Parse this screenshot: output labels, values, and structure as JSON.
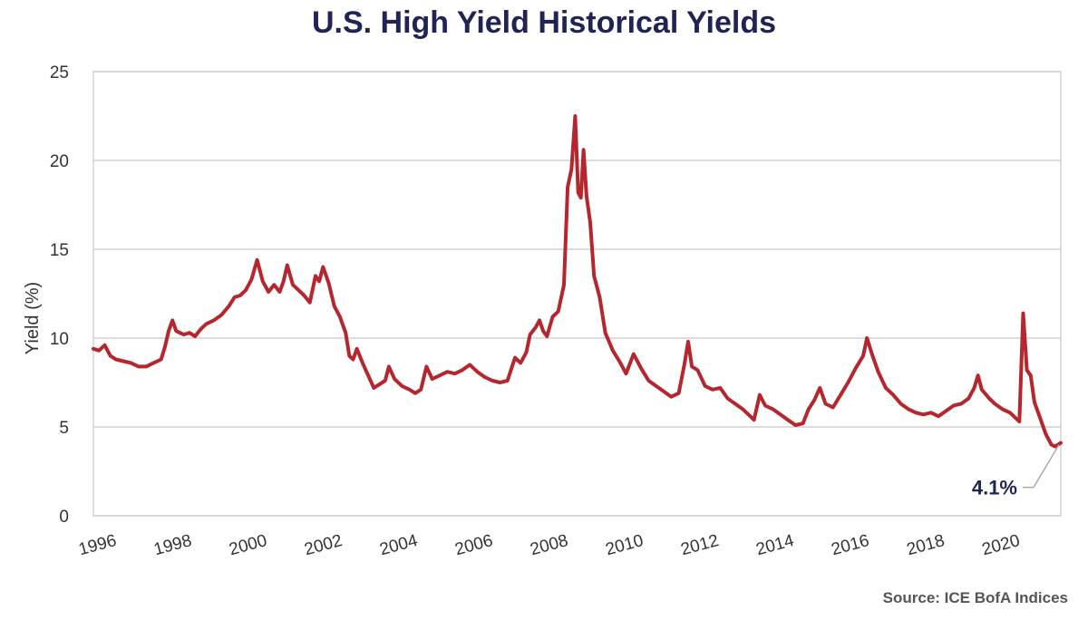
{
  "title": "U.S. High Yield Historical Yields",
  "source": "Source: ICE BofA Indices",
  "chart_data": {
    "type": "line",
    "ylabel": "Yield (%)",
    "xlabel": "",
    "xlim": [
      1996,
      2021.7
    ],
    "ylim": [
      0,
      25
    ],
    "yticks": [
      0,
      5,
      10,
      15,
      20,
      25
    ],
    "xticks": [
      1996,
      1998,
      2000,
      2002,
      2004,
      2006,
      2008,
      2010,
      2012,
      2014,
      2016,
      2018,
      2020
    ],
    "grid": "horizontal",
    "line_color": "#b5262e",
    "annotation": {
      "text": "4.1%",
      "x": 2021.7,
      "y": 4.1
    },
    "series": [
      {
        "points": [
          [
            1996.0,
            9.4
          ],
          [
            1996.15,
            9.3
          ],
          [
            1996.3,
            9.6
          ],
          [
            1996.45,
            9.0
          ],
          [
            1996.6,
            8.8
          ],
          [
            1996.8,
            8.7
          ],
          [
            1997.0,
            8.6
          ],
          [
            1997.2,
            8.4
          ],
          [
            1997.4,
            8.4
          ],
          [
            1997.6,
            8.6
          ],
          [
            1997.8,
            8.8
          ],
          [
            1997.9,
            9.5
          ],
          [
            1998.0,
            10.4
          ],
          [
            1998.1,
            11.0
          ],
          [
            1998.2,
            10.4
          ],
          [
            1998.4,
            10.2
          ],
          [
            1998.55,
            10.3
          ],
          [
            1998.7,
            10.1
          ],
          [
            1998.85,
            10.5
          ],
          [
            1999.0,
            10.8
          ],
          [
            1999.2,
            11.0
          ],
          [
            1999.4,
            11.3
          ],
          [
            1999.6,
            11.8
          ],
          [
            1999.75,
            12.3
          ],
          [
            1999.9,
            12.4
          ],
          [
            2000.05,
            12.7
          ],
          [
            2000.2,
            13.3
          ],
          [
            2000.35,
            14.4
          ],
          [
            2000.5,
            13.2
          ],
          [
            2000.65,
            12.6
          ],
          [
            2000.8,
            13.0
          ],
          [
            2000.95,
            12.6
          ],
          [
            2001.05,
            13.2
          ],
          [
            2001.15,
            14.1
          ],
          [
            2001.3,
            13.0
          ],
          [
            2001.45,
            12.7
          ],
          [
            2001.6,
            12.4
          ],
          [
            2001.75,
            12.0
          ],
          [
            2001.9,
            13.5
          ],
          [
            2002.0,
            13.2
          ],
          [
            2002.1,
            14.0
          ],
          [
            2002.25,
            13.1
          ],
          [
            2002.4,
            11.8
          ],
          [
            2002.55,
            11.2
          ],
          [
            2002.7,
            10.3
          ],
          [
            2002.8,
            9.0
          ],
          [
            2002.9,
            8.8
          ],
          [
            2003.0,
            9.4
          ],
          [
            2003.15,
            8.6
          ],
          [
            2003.3,
            7.9
          ],
          [
            2003.45,
            7.2
          ],
          [
            2003.6,
            7.4
          ],
          [
            2003.75,
            7.6
          ],
          [
            2003.85,
            8.4
          ],
          [
            2004.0,
            7.7
          ],
          [
            2004.2,
            7.3
          ],
          [
            2004.4,
            7.1
          ],
          [
            2004.55,
            6.9
          ],
          [
            2004.7,
            7.1
          ],
          [
            2004.85,
            8.4
          ],
          [
            2005.0,
            7.7
          ],
          [
            2005.2,
            7.9
          ],
          [
            2005.4,
            8.1
          ],
          [
            2005.6,
            8.0
          ],
          [
            2005.8,
            8.2
          ],
          [
            2006.0,
            8.5
          ],
          [
            2006.2,
            8.1
          ],
          [
            2006.4,
            7.8
          ],
          [
            2006.6,
            7.6
          ],
          [
            2006.8,
            7.5
          ],
          [
            2007.0,
            7.6
          ],
          [
            2007.2,
            8.9
          ],
          [
            2007.35,
            8.6
          ],
          [
            2007.5,
            9.2
          ],
          [
            2007.6,
            10.2
          ],
          [
            2007.75,
            10.6
          ],
          [
            2007.85,
            11.0
          ],
          [
            2007.95,
            10.4
          ],
          [
            2008.05,
            10.1
          ],
          [
            2008.2,
            11.2
          ],
          [
            2008.35,
            11.5
          ],
          [
            2008.5,
            13.0
          ],
          [
            2008.6,
            18.5
          ],
          [
            2008.7,
            19.5
          ],
          [
            2008.8,
            22.5
          ],
          [
            2008.88,
            18.2
          ],
          [
            2008.95,
            17.9
          ],
          [
            2009.02,
            20.6
          ],
          [
            2009.1,
            18.0
          ],
          [
            2009.2,
            16.5
          ],
          [
            2009.3,
            13.5
          ],
          [
            2009.45,
            12.3
          ],
          [
            2009.6,
            10.3
          ],
          [
            2009.8,
            9.3
          ],
          [
            2010.0,
            8.6
          ],
          [
            2010.15,
            8.0
          ],
          [
            2010.35,
            9.1
          ],
          [
            2010.55,
            8.3
          ],
          [
            2010.75,
            7.6
          ],
          [
            2010.95,
            7.3
          ],
          [
            2011.15,
            7.0
          ],
          [
            2011.35,
            6.7
          ],
          [
            2011.55,
            6.9
          ],
          [
            2011.7,
            8.5
          ],
          [
            2011.8,
            9.8
          ],
          [
            2011.9,
            8.4
          ],
          [
            2012.05,
            8.2
          ],
          [
            2012.25,
            7.3
          ],
          [
            2012.45,
            7.1
          ],
          [
            2012.65,
            7.2
          ],
          [
            2012.85,
            6.6
          ],
          [
            2013.05,
            6.3
          ],
          [
            2013.25,
            6.0
          ],
          [
            2013.45,
            5.6
          ],
          [
            2013.55,
            5.4
          ],
          [
            2013.7,
            6.8
          ],
          [
            2013.85,
            6.2
          ],
          [
            2014.05,
            6.0
          ],
          [
            2014.25,
            5.7
          ],
          [
            2014.45,
            5.4
          ],
          [
            2014.65,
            5.1
          ],
          [
            2014.85,
            5.2
          ],
          [
            2015.0,
            6.0
          ],
          [
            2015.15,
            6.5
          ],
          [
            2015.3,
            7.2
          ],
          [
            2015.45,
            6.3
          ],
          [
            2015.65,
            6.1
          ],
          [
            2015.85,
            6.8
          ],
          [
            2016.05,
            7.5
          ],
          [
            2016.25,
            8.3
          ],
          [
            2016.45,
            9.0
          ],
          [
            2016.55,
            10.0
          ],
          [
            2016.7,
            9.0
          ],
          [
            2016.85,
            8.1
          ],
          [
            2017.05,
            7.2
          ],
          [
            2017.25,
            6.8
          ],
          [
            2017.45,
            6.3
          ],
          [
            2017.65,
            6.0
          ],
          [
            2017.85,
            5.8
          ],
          [
            2018.05,
            5.7
          ],
          [
            2018.25,
            5.8
          ],
          [
            2018.45,
            5.6
          ],
          [
            2018.65,
            5.9
          ],
          [
            2018.85,
            6.2
          ],
          [
            2019.05,
            6.3
          ],
          [
            2019.25,
            6.6
          ],
          [
            2019.4,
            7.2
          ],
          [
            2019.5,
            7.9
          ],
          [
            2019.6,
            7.1
          ],
          [
            2019.8,
            6.6
          ],
          [
            2019.95,
            6.3
          ],
          [
            2020.15,
            6.0
          ],
          [
            2020.35,
            5.8
          ],
          [
            2020.5,
            5.5
          ],
          [
            2020.6,
            5.3
          ],
          [
            2020.7,
            11.4
          ],
          [
            2020.8,
            8.2
          ],
          [
            2020.9,
            7.9
          ],
          [
            2021.0,
            6.4
          ],
          [
            2021.15,
            5.5
          ],
          [
            2021.3,
            4.6
          ],
          [
            2021.45,
            4.0
          ],
          [
            2021.55,
            3.9
          ],
          [
            2021.7,
            4.1
          ]
        ]
      }
    ]
  }
}
